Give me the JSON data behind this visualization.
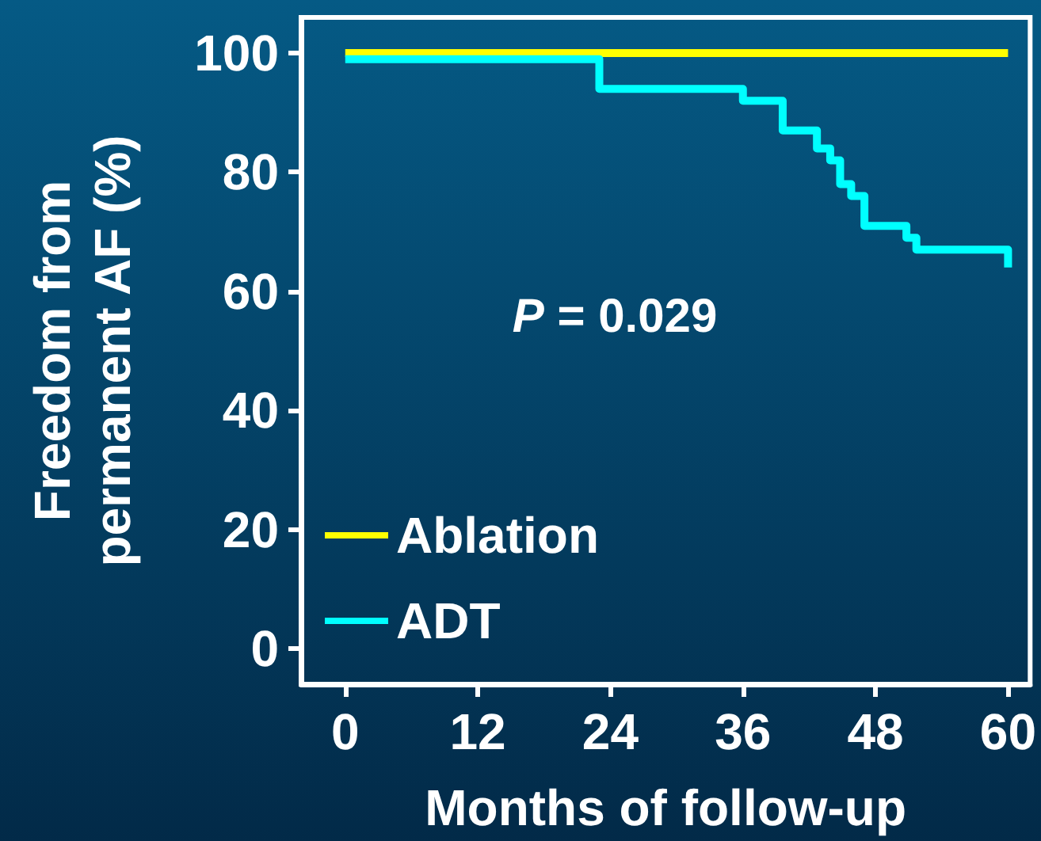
{
  "chart_data": {
    "type": "step",
    "xlabel": "Months of follow-up",
    "ylabel": "Freedom from\npermanent AF (%)",
    "xlim": [
      -4,
      62
    ],
    "ylim": [
      -6,
      106
    ],
    "xticks": [
      0,
      12,
      24,
      36,
      48,
      60
    ],
    "yticks": [
      0,
      20,
      40,
      60,
      80,
      100
    ],
    "grid": false,
    "legend": "bottom left",
    "marker": "none",
    "line_style": "solid",
    "annotations": [
      "P = 0.029"
    ],
    "series": [
      {
        "name": "Ablation",
        "color": "#ffff00",
        "x": [
          0,
          60
        ],
        "values": [
          100,
          100
        ]
      },
      {
        "name": "ADT",
        "color": "#00ffff",
        "x": [
          0,
          23,
          36,
          39.6,
          42.7,
          43.9,
          44.8,
          45.8,
          47,
          50.8,
          51.7,
          60,
          60
        ],
        "values": [
          99,
          94,
          92,
          87,
          84,
          82,
          78,
          76,
          71,
          69,
          67,
          67,
          64
        ]
      }
    ]
  }
}
